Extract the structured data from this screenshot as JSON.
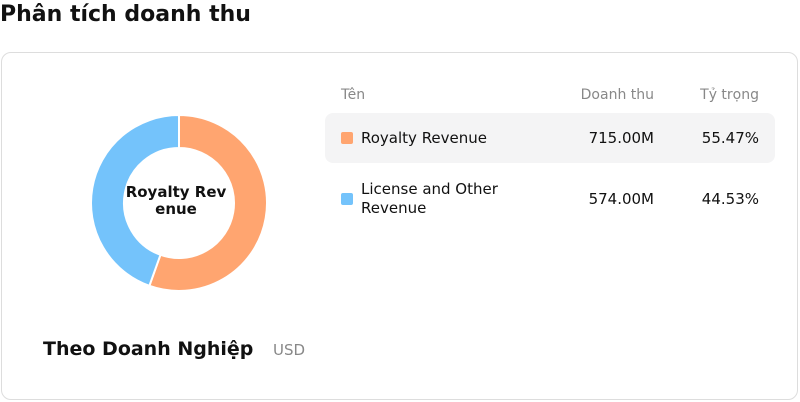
{
  "header": {
    "title": "Phân tích doanh thu"
  },
  "chart_data": {
    "type": "pie",
    "donut": true,
    "title": "Theo Doanh Nghiệp",
    "unit": "USD",
    "categories": [
      "Royalty Revenue",
      "License and Other Revenue"
    ],
    "colors": [
      "#ffa570",
      "#74c3fb"
    ],
    "values": [
      715,
      574
    ],
    "value_labels": [
      "715.00M",
      "574.00M"
    ],
    "share_labels": [
      "55.47%",
      "44.53%"
    ]
  },
  "table": {
    "columns": [
      "Tên",
      "Doanh thu",
      "Tỷ trọng"
    ],
    "highlighted_row": 0
  }
}
